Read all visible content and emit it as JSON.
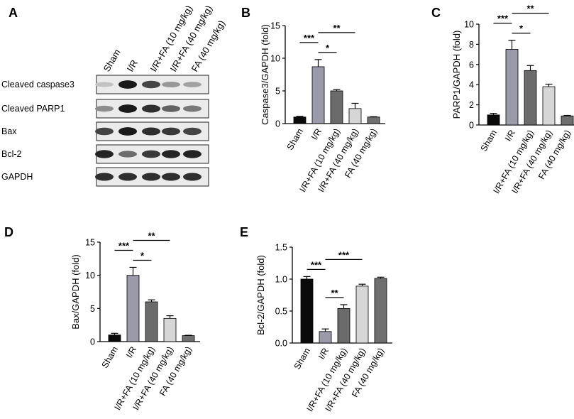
{
  "panels": {
    "A": {
      "letter": "A",
      "lanes": [
        "Sham",
        "I/R",
        "I/R+FA (10 mg/kg)",
        "I/R+FA (40 mg/kg)",
        "FA (40 mg/kg)"
      ],
      "rows": [
        {
          "label": "Cleaved caspase3",
          "intensity": [
            0.15,
            0.95,
            0.75,
            0.35,
            0.3
          ]
        },
        {
          "label": "Cleaved PARP1",
          "intensity": [
            0.4,
            0.95,
            0.85,
            0.6,
            0.5
          ]
        },
        {
          "label": "Bax",
          "intensity": [
            0.75,
            0.95,
            0.85,
            0.8,
            0.75
          ]
        },
        {
          "label": "Bcl-2",
          "intensity": [
            0.9,
            0.55,
            0.8,
            0.9,
            0.9
          ]
        },
        {
          "label": "GAPDH",
          "intensity": [
            0.85,
            0.85,
            0.85,
            0.85,
            0.85
          ]
        }
      ]
    }
  },
  "chart_data": [
    {
      "id": "B",
      "letter": "B",
      "type": "bar",
      "ylabel": "Caspase3/GAPDH (fold)",
      "categories": [
        "Sham",
        "I/R",
        "I/R+FA (10 mg/kg)",
        "I/R+FA (40 mg/kg)",
        "FA (40 mg/kg)"
      ],
      "values": [
        1.0,
        8.7,
        5.0,
        2.3,
        1.0
      ],
      "errors": [
        0.1,
        1.1,
        0.2,
        0.8,
        0.05
      ],
      "ylim": [
        0,
        15
      ],
      "yticks": [
        0,
        5,
        10,
        15
      ],
      "significance": [
        {
          "from": 1,
          "to": 2,
          "label": "*"
        },
        {
          "from": 0,
          "to": 1,
          "label": "***"
        },
        {
          "from": 1,
          "to": 3,
          "label": "**"
        }
      ]
    },
    {
      "id": "C",
      "letter": "C",
      "type": "bar",
      "ylabel": "PARP1/GAPDH (fold)",
      "categories": [
        "Sham",
        "I/R",
        "I/R+FA (10 mg/kg)",
        "I/R+FA (40 mg/kg)",
        "FA (40 mg/kg)"
      ],
      "values": [
        1.0,
        7.5,
        5.4,
        3.8,
        0.9
      ],
      "errors": [
        0.15,
        0.9,
        0.5,
        0.25,
        0.05
      ],
      "ylim": [
        0,
        10
      ],
      "yticks": [
        0,
        2,
        4,
        6,
        8,
        10
      ],
      "significance": [
        {
          "from": 1,
          "to": 2,
          "label": "*"
        },
        {
          "from": 0,
          "to": 1,
          "label": "***"
        },
        {
          "from": 1,
          "to": 3,
          "label": "**"
        }
      ]
    },
    {
      "id": "D",
      "letter": "D",
      "type": "bar",
      "ylabel": "Bax/GAPDH (fold)",
      "categories": [
        "Sham",
        "I/R",
        "I/R+FA (10 mg/kg)",
        "I/R+FA (40 mg/kg)",
        "FA (40 mg/kg)"
      ],
      "values": [
        1.0,
        10.0,
        6.0,
        3.5,
        0.9
      ],
      "errors": [
        0.25,
        1.2,
        0.3,
        0.4,
        0.05
      ],
      "ylim": [
        0,
        15
      ],
      "yticks": [
        0,
        5,
        10,
        15
      ],
      "significance": [
        {
          "from": 1,
          "to": 2,
          "label": "*"
        },
        {
          "from": 0,
          "to": 1,
          "label": "***"
        },
        {
          "from": 1,
          "to": 3,
          "label": "**"
        }
      ]
    },
    {
      "id": "E",
      "letter": "E",
      "type": "bar",
      "ylabel": "Bcl-2/GAPDH (fold)",
      "categories": [
        "Sham",
        "I/R",
        "I/R+FA (10 mg/kg)",
        "I/R+FA (40 mg/kg)",
        "FA (40 mg/kg)"
      ],
      "values": [
        1.0,
        0.18,
        0.54,
        0.89,
        1.01
      ],
      "errors": [
        0.04,
        0.04,
        0.06,
        0.03,
        0.02
      ],
      "ylim": [
        0,
        1.5
      ],
      "yticks": [
        0.0,
        0.5,
        1.0,
        1.5
      ],
      "significance": [
        {
          "from": 1,
          "to": 2,
          "label": "**"
        },
        {
          "from": 0,
          "to": 1,
          "label": "***"
        },
        {
          "from": 1,
          "to": 3,
          "label": "***"
        }
      ]
    }
  ],
  "colors": {
    "bars": [
      "#0a0a0a",
      "#9a9aa8",
      "#6b6b6b",
      "#d6d6d6",
      "#6f6f6f"
    ],
    "axis": "#000000"
  }
}
